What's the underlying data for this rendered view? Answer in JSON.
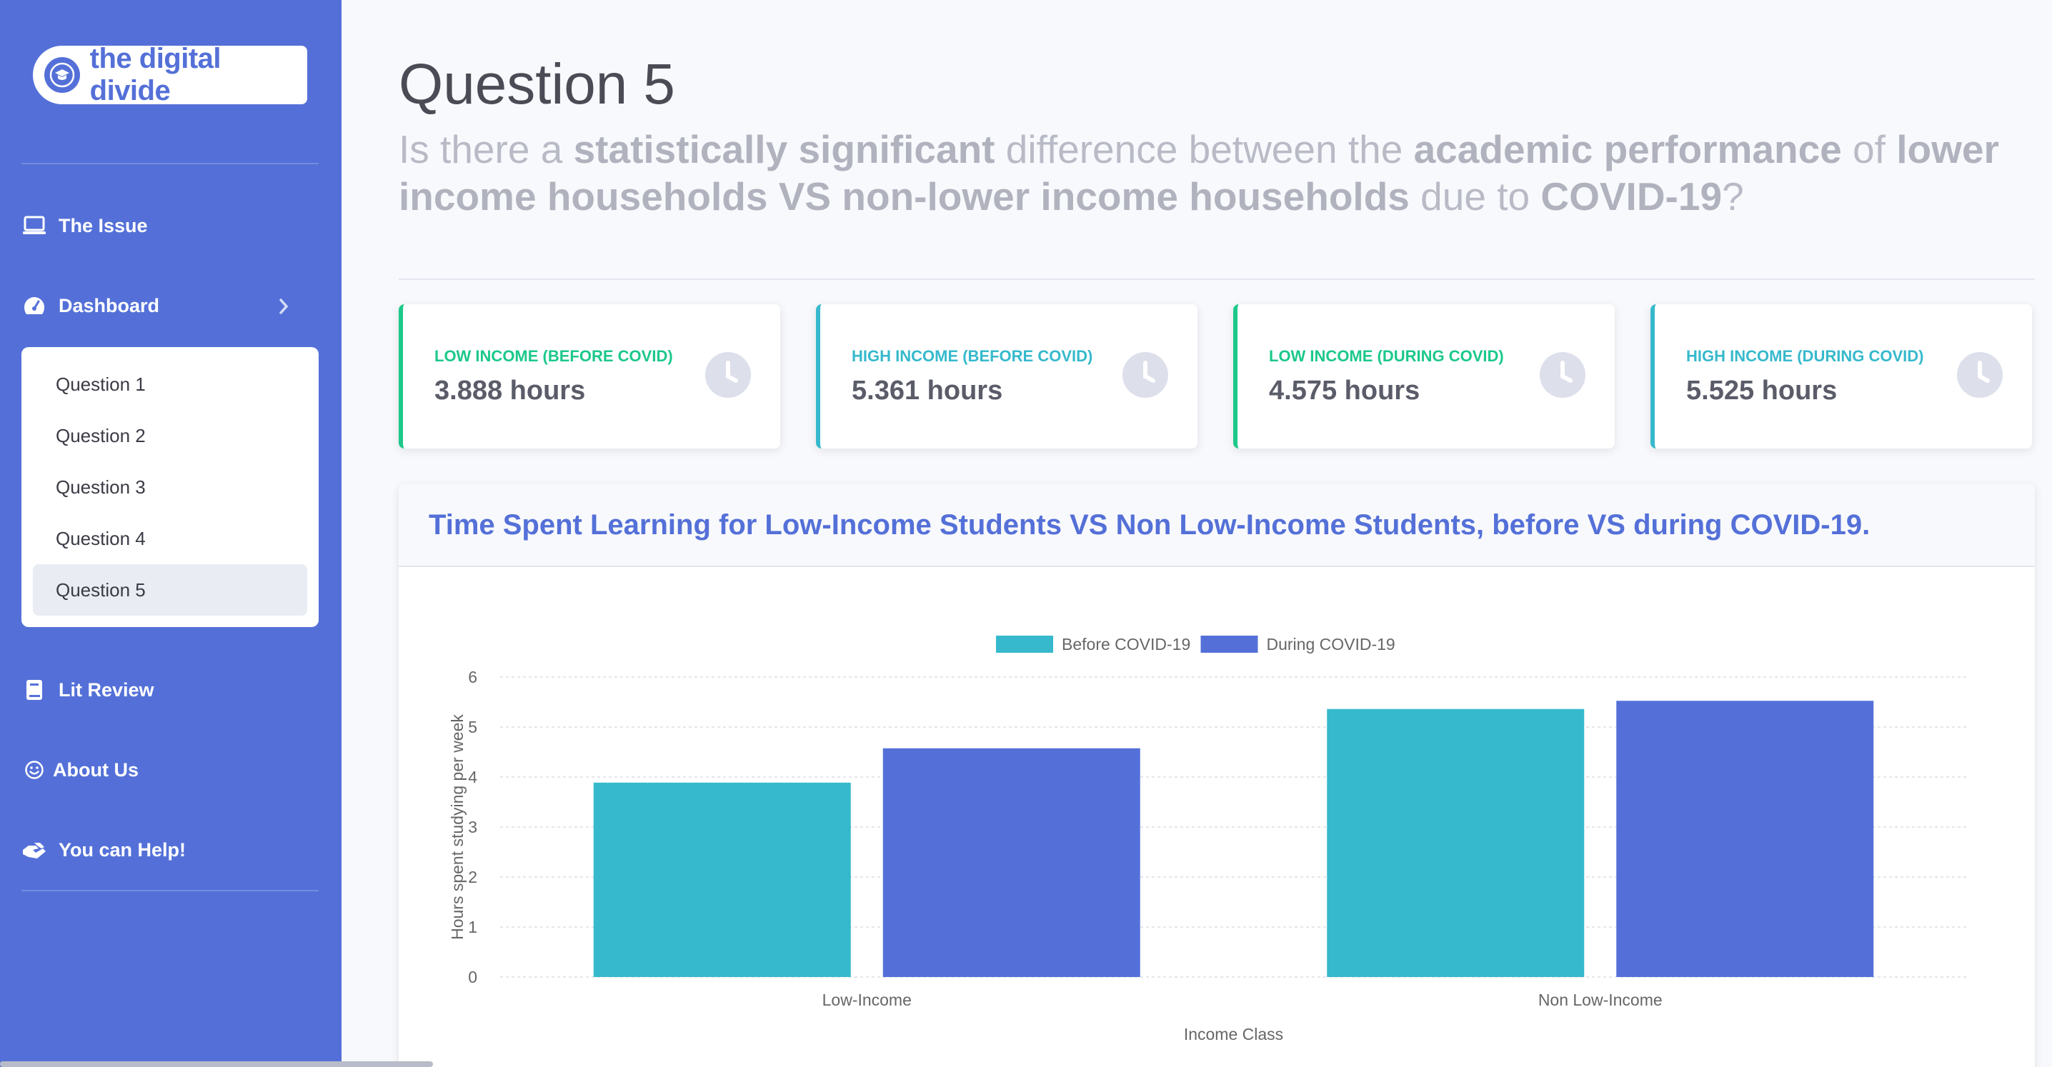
{
  "sidebar": {
    "brand": "the digital divide",
    "items": [
      {
        "label": "The Issue",
        "icon": "laptop-icon"
      },
      {
        "label": "Dashboard",
        "icon": "tachometer-icon"
      },
      {
        "label": "Lit Review",
        "icon": "book-icon"
      },
      {
        "label": "About Us",
        "icon": "smile-icon"
      },
      {
        "label": "You can Help!",
        "icon": "hands-helping-icon"
      }
    ],
    "submenu": [
      "Question 1",
      "Question 2",
      "Question 3",
      "Question 4",
      "Question 5"
    ],
    "active_submenu": "Question 5"
  },
  "page": {
    "title": "Question 5",
    "question_parts": [
      {
        "text": "Is there a ",
        "bold": false
      },
      {
        "text": "statistically significant",
        "bold": true
      },
      {
        "text": " difference between the ",
        "bold": false
      },
      {
        "text": "academic performance",
        "bold": true
      },
      {
        "text": " of ",
        "bold": false
      },
      {
        "text": "lower income households VS non-lower income households",
        "bold": true
      },
      {
        "text": " due to ",
        "bold": false
      },
      {
        "text": "COVID-19",
        "bold": true
      },
      {
        "text": "?",
        "bold": false
      }
    ]
  },
  "cards": [
    {
      "label": "Low Income (Before COVID)",
      "value": "3.888 hours",
      "accent": "#1cc88a",
      "icon": "clock-icon"
    },
    {
      "label": "High Income (Before COVID)",
      "value": "5.361 hours",
      "accent": "#36b9cc",
      "icon": "clock-icon"
    },
    {
      "label": "Low Income (During COVID)",
      "value": "4.575 hours",
      "accent": "#1cc88a",
      "icon": "clock-icon"
    },
    {
      "label": "High Income (During COVID)",
      "value": "5.525 hours",
      "accent": "#36b9cc",
      "icon": "clock-icon"
    }
  ],
  "chart_title": "Time Spent Learning for Low-Income Students VS Non Low-Income Students, before VS during COVID-19.",
  "chart_data": {
    "type": "bar",
    "categories": [
      "Low-Income",
      "Non Low-Income"
    ],
    "series": [
      {
        "name": "Before COVID-19",
        "values": [
          3.888,
          5.361
        ],
        "color": "#36b9cc"
      },
      {
        "name": "During COVID-19",
        "values": [
          4.575,
          5.525
        ],
        "color": "#5470d8"
      }
    ],
    "xlabel": "Income Class",
    "ylabel": "Hours spent studying per week",
    "ylim": [
      0,
      6
    ],
    "yticks": [
      0,
      1,
      2,
      3,
      4,
      5,
      6
    ],
    "grid": true,
    "legend": "top-center"
  },
  "colors": {
    "primary": "#5470d8",
    "success": "#1cc88a",
    "info": "#36b9cc"
  }
}
